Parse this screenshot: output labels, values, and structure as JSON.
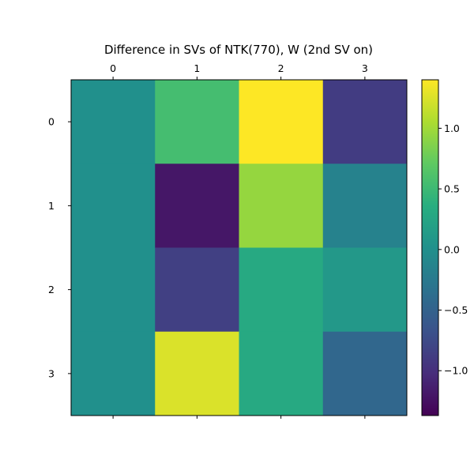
{
  "chart_data": {
    "type": "heatmap",
    "title": "Difference in SVs of NTK(770), W (2nd SV on)",
    "x_categories": [
      "0",
      "1",
      "2",
      "3"
    ],
    "y_categories": [
      "0",
      "1",
      "2",
      "3"
    ],
    "values": [
      [
        0.0,
        0.55,
        1.4,
        -0.88
      ],
      [
        0.0,
        -1.2,
        0.95,
        -0.15
      ],
      [
        0.0,
        -0.85,
        0.3,
        0.1
      ],
      [
        0.0,
        1.25,
        0.3,
        -0.45
      ]
    ],
    "vmin": -1.37,
    "vmax": 1.4,
    "colorbar_ticks": [
      "-1.0",
      "-0.5",
      "0.0",
      "0.5",
      "1.0"
    ],
    "colorbar_tick_values": [
      -1.0,
      -0.5,
      0.0,
      0.5,
      1.0
    ],
    "colormap": "viridis",
    "x_axis_position": "top",
    "grid": false
  }
}
